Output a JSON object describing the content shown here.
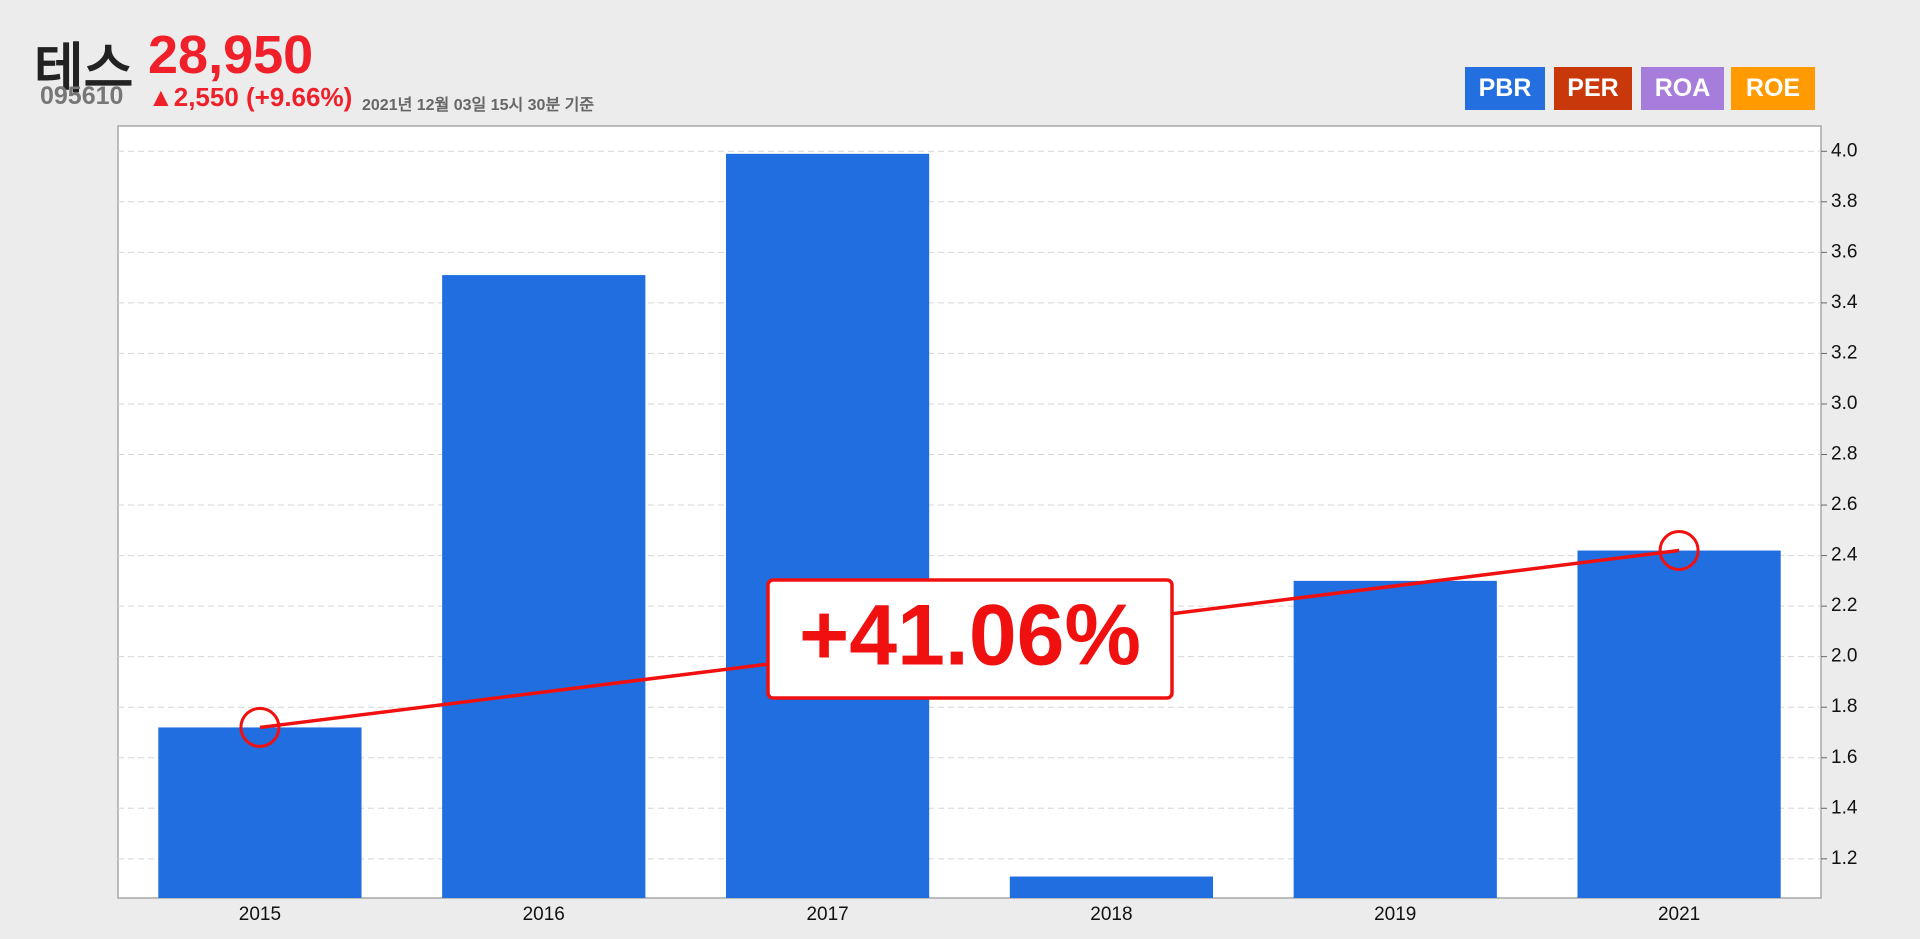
{
  "header": {
    "name": "테스",
    "price": "28,950",
    "code": "095610",
    "change": "▲2,550 (+9.66%)",
    "timestamp": "2021년 12월 03일 15시 30분 기준"
  },
  "buttons": [
    {
      "label": "PBR",
      "color": "#236fdf"
    },
    {
      "label": "PER",
      "color": "#c9380b"
    },
    {
      "label": "ROA",
      "color": "#a77ddb"
    },
    {
      "label": "ROE",
      "color": "#ff9a00"
    }
  ],
  "chart_data": {
    "type": "bar",
    "categories": [
      "2015",
      "2016",
      "2017",
      "2018",
      "2019",
      "2021"
    ],
    "values": [
      1.72,
      3.51,
      3.99,
      1.13,
      2.3,
      2.42
    ],
    "color": "#216ee0",
    "ylim": [
      1.045,
      4.1
    ],
    "yticks": [
      1.2,
      1.4,
      1.6,
      1.8,
      {
        "value": 2,
        "label": "2.0"
      },
      2.2,
      2.4,
      2.6,
      2.8,
      {
        "value": 3,
        "label": "3.0"
      },
      3.2,
      3.4,
      3.6,
      3.8,
      {
        "value": 4,
        "label": "4.0"
      }
    ],
    "grid": true,
    "annotation": "+41.06%",
    "annotation_color": "#f01010"
  }
}
